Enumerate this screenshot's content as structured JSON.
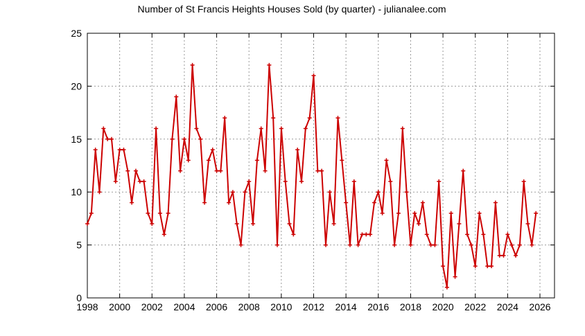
{
  "chart_data": {
    "type": "line",
    "title": "Number of St Francis Heights Houses Sold (by quarter) - julianalee.com",
    "xlabel": "",
    "ylabel": "",
    "xlim": [
      1998,
      2026.9
    ],
    "ylim": [
      0,
      25
    ],
    "xticks": [
      1998,
      2000,
      2002,
      2004,
      2006,
      2008,
      2010,
      2012,
      2014,
      2016,
      2018,
      2020,
      2022,
      2024,
      2026
    ],
    "yticks": [
      0,
      5,
      10,
      15,
      20,
      25
    ],
    "grid": true,
    "line_color": "#cc0000",
    "x_start": 1998,
    "x_step": 0.25,
    "series": [
      {
        "name": "Houses Sold",
        "values": [
          7,
          8,
          14,
          10,
          16,
          15,
          15,
          11,
          14,
          14,
          12,
          9,
          12,
          11,
          11,
          8,
          7,
          16,
          8,
          6,
          8,
          15,
          19,
          12,
          15,
          13,
          22,
          16,
          15,
          9,
          13,
          14,
          12,
          12,
          17,
          9,
          10,
          7,
          5,
          10,
          11,
          7,
          13,
          16,
          12,
          22,
          17,
          5,
          16,
          11,
          7,
          6,
          14,
          11,
          16,
          17,
          21,
          12,
          12,
          5,
          10,
          7,
          17,
          13,
          9,
          5,
          11,
          5,
          6,
          6,
          6,
          9,
          10,
          8,
          13,
          11,
          5,
          8,
          16,
          10,
          5,
          8,
          7,
          9,
          6,
          5,
          5,
          11,
          3,
          1,
          8,
          2,
          7,
          12,
          6,
          5,
          3,
          8,
          6,
          3,
          3,
          9,
          4,
          4,
          6,
          5,
          4,
          5,
          11,
          7,
          5,
          8
        ]
      }
    ]
  }
}
